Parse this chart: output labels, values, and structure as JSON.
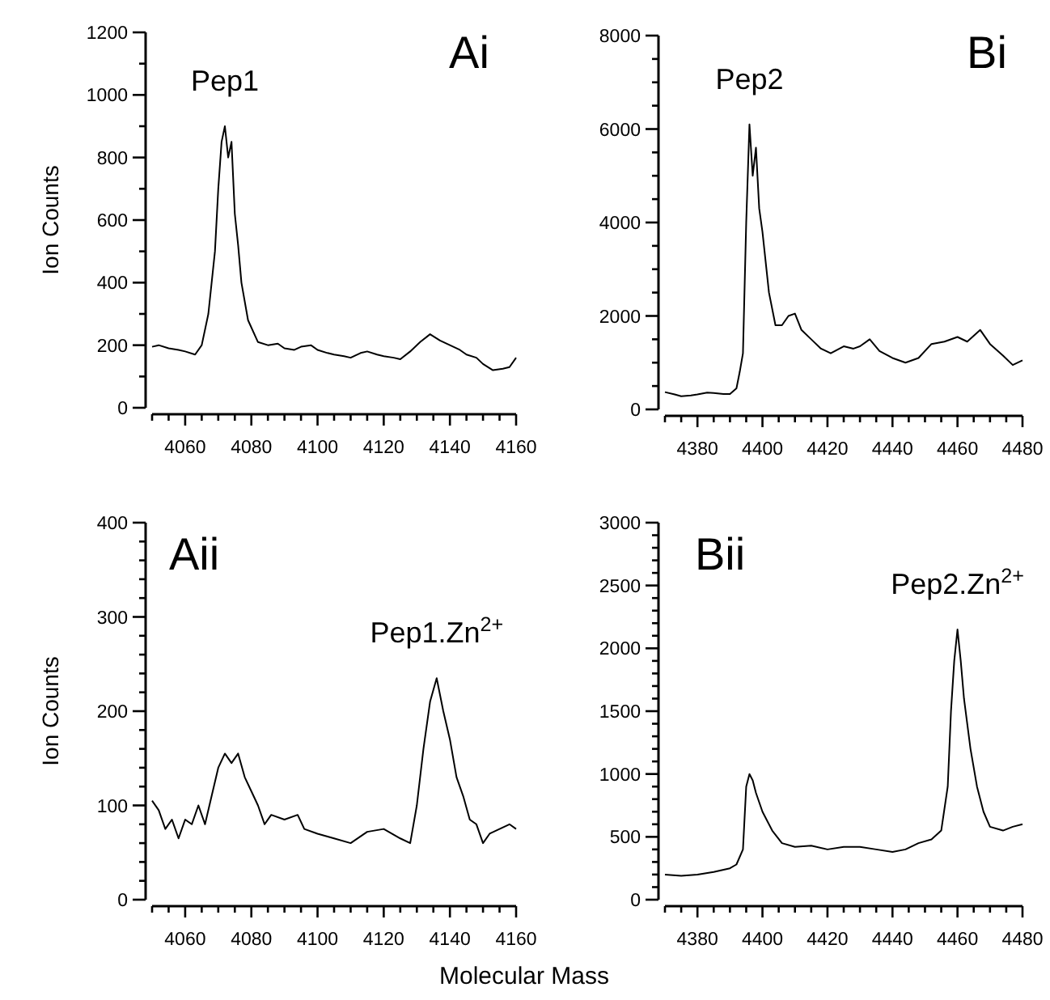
{
  "chart_data": [
    {
      "type": "line",
      "title": "Ai",
      "ylabel": "Ion Counts",
      "annotations": [
        {
          "text": "Pep1",
          "x": 4072,
          "y": 900
        }
      ],
      "xlim": [
        4050,
        4160
      ],
      "xticks": [
        {
          "value": 4050,
          "label": null
        },
        {
          "value": 4055,
          "label": null
        },
        4060,
        {
          "value": 4065,
          "label": null
        },
        {
          "value": 4070,
          "label": null
        },
        {
          "value": 4075,
          "label": null
        },
        4080,
        {
          "value": 4085,
          "label": null
        },
        {
          "value": 4090,
          "label": null
        },
        {
          "value": 4095,
          "label": null
        },
        4100,
        {
          "value": 4105,
          "label": null
        },
        {
          "value": 4110,
          "label": null
        },
        {
          "value": 4115,
          "label": null
        },
        4120,
        {
          "value": 4125,
          "label": null
        },
        {
          "value": 4130,
          "label": null
        },
        {
          "value": 4135,
          "label": null
        },
        4140,
        {
          "value": 4145,
          "label": null
        },
        {
          "value": 4150,
          "label": null
        },
        {
          "value": 4155,
          "label": null
        },
        4160
      ],
      "ylim": [
        0,
        1200
      ],
      "yticks": [
        0,
        {
          "value": 100,
          "label": null
        },
        200,
        {
          "value": 300,
          "label": null
        },
        400,
        {
          "value": 500,
          "label": null
        },
        600,
        {
          "value": 700,
          "label": null
        },
        800,
        {
          "value": 900,
          "label": null
        },
        1000,
        {
          "value": 1100,
          "label": null
        },
        1200
      ],
      "series": [
        {
          "color": "#000000",
          "x": [
            4050,
            4052,
            4055,
            4058,
            4060,
            4063,
            4065,
            4067,
            4069,
            4070,
            4071,
            4072,
            4073,
            4074,
            4075,
            4076,
            4077,
            4079,
            4082,
            4085,
            4088,
            4090,
            4093,
            4095,
            4098,
            4100,
            4103,
            4105,
            4108,
            4110,
            4113,
            4115,
            4118,
            4120,
            4123,
            4125,
            4128,
            4131,
            4134,
            4137,
            4140,
            4143,
            4145,
            4148,
            4150,
            4153,
            4156,
            4158,
            4160
          ],
          "values": [
            195,
            200,
            190,
            185,
            180,
            170,
            200,
            300,
            500,
            700,
            850,
            900,
            800,
            850,
            620,
            520,
            400,
            280,
            210,
            200,
            205,
            190,
            185,
            195,
            200,
            185,
            175,
            170,
            165,
            160,
            175,
            180,
            170,
            165,
            160,
            155,
            180,
            210,
            235,
            215,
            200,
            185,
            170,
            160,
            140,
            120,
            125,
            130,
            160
          ]
        }
      ]
    },
    {
      "type": "line",
      "title": "Bi",
      "annotations": [
        {
          "text": "Pep2",
          "x": 4396,
          "y": 6100
        }
      ],
      "xlim": [
        4370,
        4480
      ],
      "xticks": [
        {
          "value": 4370,
          "label": null
        },
        {
          "value": 4375,
          "label": null
        },
        4380,
        {
          "value": 4385,
          "label": null
        },
        {
          "value": 4390,
          "label": null
        },
        {
          "value": 4395,
          "label": null
        },
        4400,
        {
          "value": 4405,
          "label": null
        },
        {
          "value": 4410,
          "label": null
        },
        {
          "value": 4415,
          "label": null
        },
        4420,
        {
          "value": 4425,
          "label": null
        },
        {
          "value": 4430,
          "label": null
        },
        {
          "value": 4435,
          "label": null
        },
        4440,
        {
          "value": 4445,
          "label": null
        },
        {
          "value": 4450,
          "label": null
        },
        {
          "value": 4455,
          "label": null
        },
        4460,
        {
          "value": 4465,
          "label": null
        },
        {
          "value": 4470,
          "label": null
        },
        {
          "value": 4475,
          "label": null
        },
        4480
      ],
      "ylim": [
        0,
        8000
      ],
      "yticks": [
        0,
        {
          "value": 500,
          "label": null
        },
        {
          "value": 1000,
          "label": null
        },
        {
          "value": 1500,
          "label": null
        },
        2000,
        {
          "value": 2500,
          "label": null
        },
        {
          "value": 3000,
          "label": null
        },
        {
          "value": 3500,
          "label": null
        },
        4000,
        {
          "value": 4500,
          "label": null
        },
        {
          "value": 5000,
          "label": null
        },
        {
          "value": 5500,
          "label": null
        },
        6000,
        {
          "value": 6500,
          "label": null
        },
        {
          "value": 7000,
          "label": null
        },
        {
          "value": 7500,
          "label": null
        },
        8000
      ],
      "series": [
        {
          "color": "#000000",
          "x": [
            4370,
            4373,
            4375,
            4378,
            4380,
            4383,
            4385,
            4388,
            4390,
            4392,
            4393,
            4394,
            4395,
            4396,
            4397,
            4398,
            4399,
            4400,
            4402,
            4404,
            4406,
            4408,
            4410,
            4412,
            4415,
            4418,
            4421,
            4425,
            4428,
            4430,
            4433,
            4436,
            4440,
            4444,
            4448,
            4452,
            4456,
            4460,
            4463,
            4467,
            4470,
            4474,
            4477,
            4480
          ],
          "values": [
            370,
            320,
            280,
            300,
            320,
            360,
            350,
            330,
            330,
            450,
            800,
            1200,
            4000,
            6100,
            5000,
            5600,
            4300,
            3800,
            2500,
            1800,
            1800,
            2000,
            2050,
            1700,
            1500,
            1300,
            1200,
            1350,
            1300,
            1350,
            1500,
            1250,
            1100,
            1000,
            1100,
            1400,
            1450,
            1550,
            1450,
            1700,
            1400,
            1150,
            950,
            1050
          ]
        }
      ]
    },
    {
      "type": "line",
      "title": "Aii",
      "ylabel": "Ion Counts",
      "xlabel": "Molecular Mass",
      "annotations": [
        {
          "text": "Pep1.Zn$^{2+}$",
          "x": 4136,
          "y": 235
        }
      ],
      "xlim": [
        4050,
        4160
      ],
      "xticks": [
        {
          "value": 4050,
          "label": null
        },
        {
          "value": 4055,
          "label": null
        },
        4060,
        {
          "value": 4065,
          "label": null
        },
        {
          "value": 4070,
          "label": null
        },
        {
          "value": 4075,
          "label": null
        },
        4080,
        {
          "value": 4085,
          "label": null
        },
        {
          "value": 4090,
          "label": null
        },
        {
          "value": 4095,
          "label": null
        },
        4100,
        {
          "value": 4105,
          "label": null
        },
        {
          "value": 4110,
          "label": null
        },
        {
          "value": 4115,
          "label": null
        },
        4120,
        {
          "value": 4125,
          "label": null
        },
        {
          "value": 4130,
          "label": null
        },
        {
          "value": 4135,
          "label": null
        },
        4140,
        {
          "value": 4145,
          "label": null
        },
        {
          "value": 4150,
          "label": null
        },
        {
          "value": 4155,
          "label": null
        },
        4160
      ],
      "ylim": [
        0,
        400
      ],
      "yticks": [
        0,
        {
          "value": 20,
          "label": null
        },
        {
          "value": 40,
          "label": null
        },
        {
          "value": 60,
          "label": null
        },
        {
          "value": 80,
          "label": null
        },
        100,
        {
          "value": 120,
          "label": null
        },
        {
          "value": 140,
          "label": null
        },
        {
          "value": 160,
          "label": null
        },
        {
          "value": 180,
          "label": null
        },
        200,
        {
          "value": 220,
          "label": null
        },
        {
          "value": 240,
          "label": null
        },
        {
          "value": 260,
          "label": null
        },
        {
          "value": 280,
          "label": null
        },
        300,
        {
          "value": 320,
          "label": null
        },
        {
          "value": 340,
          "label": null
        },
        {
          "value": 360,
          "label": null
        },
        {
          "value": 380,
          "label": null
        },
        400
      ],
      "series": [
        {
          "color": "#000000",
          "x": [
            4050,
            4052,
            4054,
            4056,
            4058,
            4060,
            4062,
            4064,
            4066,
            4068,
            4070,
            4072,
            4074,
            4076,
            4078,
            4080,
            4082,
            4084,
            4086,
            4090,
            4094,
            4096,
            4100,
            4105,
            4110,
            4115,
            4120,
            4125,
            4128,
            4130,
            4132,
            4134,
            4136,
            4138,
            4140,
            4142,
            4144,
            4146,
            4148,
            4150,
            4152,
            4155,
            4158,
            4160
          ],
          "values": [
            105,
            95,
            75,
            85,
            65,
            85,
            80,
            100,
            80,
            110,
            140,
            155,
            145,
            155,
            130,
            115,
            100,
            80,
            90,
            85,
            90,
            75,
            70,
            65,
            60,
            72,
            75,
            65,
            60,
            100,
            160,
            210,
            235,
            200,
            170,
            130,
            110,
            85,
            80,
            60,
            70,
            75,
            80,
            75
          ]
        }
      ]
    },
    {
      "type": "line",
      "title": "Bii",
      "annotations": [
        {
          "text": "Pep2.Zn$^{2+}$",
          "x": 4460,
          "y": 2150
        }
      ],
      "xlim": [
        4370,
        4480
      ],
      "xticks": [
        {
          "value": 4370,
          "label": null
        },
        {
          "value": 4375,
          "label": null
        },
        4380,
        {
          "value": 4385,
          "label": null
        },
        {
          "value": 4390,
          "label": null
        },
        {
          "value": 4395,
          "label": null
        },
        4400,
        {
          "value": 4405,
          "label": null
        },
        {
          "value": 4410,
          "label": null
        },
        {
          "value": 4415,
          "label": null
        },
        4420,
        {
          "value": 4425,
          "label": null
        },
        {
          "value": 4430,
          "label": null
        },
        {
          "value": 4435,
          "label": null
        },
        4440,
        {
          "value": 4445,
          "label": null
        },
        {
          "value": 4450,
          "label": null
        },
        {
          "value": 4455,
          "label": null
        },
        4460,
        {
          "value": 4465,
          "label": null
        },
        {
          "value": 4470,
          "label": null
        },
        {
          "value": 4475,
          "label": null
        },
        4480
      ],
      "ylim": [
        0,
        3000
      ],
      "yticks": [
        0,
        {
          "value": 100,
          "label": null
        },
        {
          "value": 200,
          "label": null
        },
        {
          "value": 300,
          "label": null
        },
        {
          "value": 400,
          "label": null
        },
        500,
        {
          "value": 600,
          "label": null
        },
        {
          "value": 700,
          "label": null
        },
        {
          "value": 800,
          "label": null
        },
        {
          "value": 900,
          "label": null
        },
        1000,
        {
          "value": 1100,
          "label": null
        },
        {
          "value": 1200,
          "label": null
        },
        {
          "value": 1300,
          "label": null
        },
        {
          "value": 1400,
          "label": null
        },
        1500,
        {
          "value": 1600,
          "label": null
        },
        {
          "value": 1700,
          "label": null
        },
        {
          "value": 1800,
          "label": null
        },
        {
          "value": 1900,
          "label": null
        },
        2000,
        {
          "value": 2100,
          "label": null
        },
        {
          "value": 2200,
          "label": null
        },
        {
          "value": 2300,
          "label": null
        },
        {
          "value": 2400,
          "label": null
        },
        2500,
        {
          "value": 2600,
          "label": null
        },
        {
          "value": 2700,
          "label": null
        },
        {
          "value": 2800,
          "label": null
        },
        {
          "value": 2900,
          "label": null
        },
        3000
      ],
      "series": [
        {
          "color": "#000000",
          "x": [
            4370,
            4375,
            4380,
            4385,
            4390,
            4392,
            4394,
            4395,
            4396,
            4397,
            4398,
            4400,
            4403,
            4406,
            4410,
            4415,
            4420,
            4425,
            4430,
            4435,
            4440,
            4444,
            4448,
            4452,
            4455,
            4457,
            4458,
            4459,
            4460,
            4461,
            4462,
            4464,
            4466,
            4468,
            4470,
            4474,
            4477,
            4480
          ],
          "values": [
            200,
            190,
            200,
            220,
            250,
            280,
            400,
            900,
            1000,
            950,
            850,
            700,
            550,
            450,
            420,
            430,
            400,
            420,
            420,
            400,
            380,
            400,
            450,
            480,
            550,
            900,
            1500,
            1900,
            2150,
            1900,
            1600,
            1200,
            900,
            700,
            580,
            550,
            580,
            600
          ]
        }
      ]
    }
  ]
}
